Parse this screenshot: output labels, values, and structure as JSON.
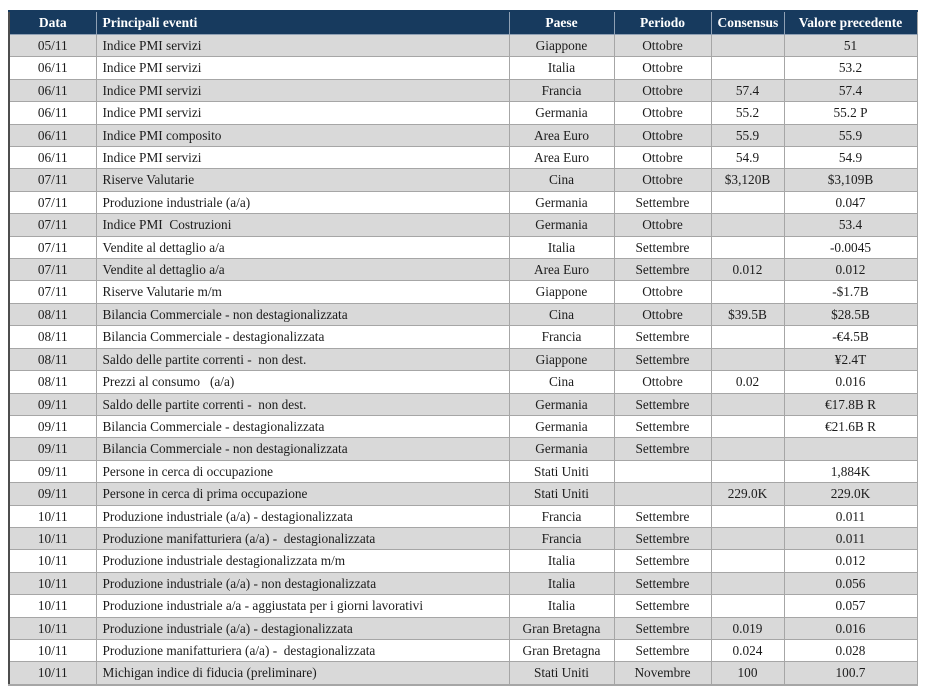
{
  "table": {
    "columns": [
      "Data",
      "Principali eventi",
      "Paese",
      "Periodo",
      "Consensus",
      "Valore precedente"
    ],
    "rows": [
      [
        "05/11",
        "Indice PMI servizi",
        "Giappone",
        "Ottobre",
        "",
        "51"
      ],
      [
        "06/11",
        "Indice PMI servizi",
        "Italia",
        "Ottobre",
        "",
        "53.2"
      ],
      [
        "06/11",
        "Indice PMI servizi",
        "Francia",
        "Ottobre",
        "57.4",
        "57.4"
      ],
      [
        "06/11",
        "Indice PMI servizi",
        "Germania",
        "Ottobre",
        "55.2",
        "55.2 P"
      ],
      [
        "06/11",
        "Indice PMI composito",
        "Area Euro",
        "Ottobre",
        "55.9",
        "55.9"
      ],
      [
        "06/11",
        "Indice PMI servizi",
        "Area Euro",
        "Ottobre",
        "54.9",
        "54.9"
      ],
      [
        "07/11",
        "Riserve Valutarie",
        "Cina",
        "Ottobre",
        "$3,120B",
        "$3,109B"
      ],
      [
        "07/11",
        "Produzione industriale (a/a)",
        "Germania",
        "Settembre",
        "",
        "0.047"
      ],
      [
        "07/11",
        "Indice PMI  Costruzioni",
        "Germania",
        "Ottobre",
        "",
        "53.4"
      ],
      [
        "07/11",
        "Vendite al dettaglio a/a",
        "Italia",
        "Settembre",
        "",
        "-0.0045"
      ],
      [
        "07/11",
        "Vendite al dettaglio a/a",
        "Area Euro",
        "Settembre",
        "0.012",
        "0.012"
      ],
      [
        "07/11",
        "Riserve Valutarie m/m",
        "Giappone",
        "Ottobre",
        "",
        "-$1.7B"
      ],
      [
        "08/11",
        "Bilancia Commerciale - non destagionalizzata",
        "Cina",
        "Ottobre",
        "$39.5B",
        "$28.5B"
      ],
      [
        "08/11",
        "Bilancia Commerciale - destagionalizzata",
        "Francia",
        "Settembre",
        "",
        "-€4.5B"
      ],
      [
        "08/11",
        "Saldo delle partite correnti -  non dest.",
        "Giappone",
        "Settembre",
        "",
        "¥2.4T"
      ],
      [
        "08/11",
        "Prezzi al consumo   (a/a)",
        "Cina",
        "Ottobre",
        "0.02",
        "0.016"
      ],
      [
        "09/11",
        "Saldo delle partite correnti -  non dest.",
        "Germania",
        "Settembre",
        "",
        "€17.8B R"
      ],
      [
        "09/11",
        "Bilancia Commerciale - destagionalizzata",
        "Germania",
        "Settembre",
        "",
        "€21.6B R"
      ],
      [
        "09/11",
        "Bilancia Commerciale - non destagionalizzata",
        "Germania",
        "Settembre",
        "",
        ""
      ],
      [
        "09/11",
        "Persone in cerca di occupazione",
        "Stati Uniti",
        "",
        "",
        "1,884K"
      ],
      [
        "09/11",
        "Persone in cerca di prima occupazione",
        "Stati Uniti",
        "",
        "229.0K",
        "229.0K"
      ],
      [
        "10/11",
        "Produzione industriale (a/a) - destagionalizzata",
        "Francia",
        "Settembre",
        "",
        "0.011"
      ],
      [
        "10/11",
        "Produzione manifatturiera (a/a) -  destagionalizzata",
        "Francia",
        "Settembre",
        "",
        "0.011"
      ],
      [
        "10/11",
        "Produzione industriale destagionalizzata m/m",
        "Italia",
        "Settembre",
        "",
        "0.012"
      ],
      [
        "10/11",
        "Produzione industriale (a/a) - non destagionalizzata",
        "Italia",
        "Settembre",
        "",
        "0.056"
      ],
      [
        "10/11",
        "Produzione industriale a/a - aggiustata per i giorni lavorativi",
        "Italia",
        "Settembre",
        "",
        "0.057"
      ],
      [
        "10/11",
        "Produzione industriale (a/a) - destagionalizzata",
        "Gran Bretagna",
        "Settembre",
        "0.019",
        "0.016"
      ],
      [
        "10/11",
        "Produzione manifatturiera (a/a) -  destagionalizzata",
        "Gran Bretagna",
        "Settembre",
        "0.024",
        "0.028"
      ],
      [
        "10/11",
        "Michigan indice di fiducia (preliminare)",
        "Stati Uniti",
        "Novembre",
        "100",
        "100.7"
      ]
    ],
    "colors": {
      "header_bg": "#173a5e",
      "header_text": "#ffffff",
      "row_gray": "#d9d9d9",
      "row_white": "#ffffff",
      "grid_line": "#a6a6a6",
      "text": "#1c1c1c"
    }
  }
}
